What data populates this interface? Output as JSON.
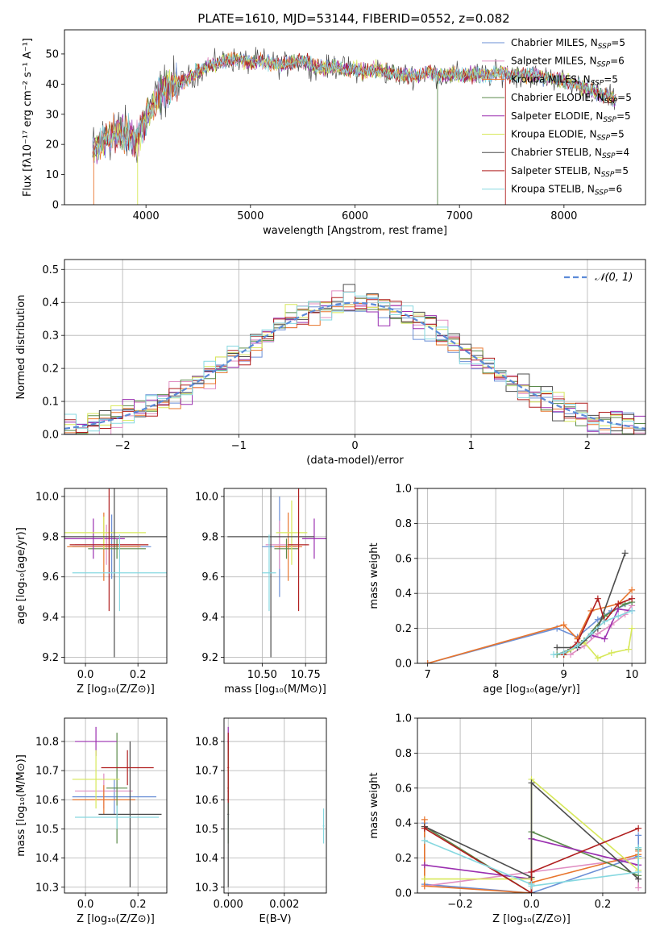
{
  "figure": {
    "title": "PLATE=1610, MJD=53144, FIBERID=0552, z=0.082"
  },
  "legend_entries": [
    {
      "pre": "Chabrier MILES, N",
      "sub": "SSP",
      "post": "=5",
      "color": "#6b8fd6"
    },
    {
      "pre": "Salpeter MILES, N",
      "sub": "SSP",
      "post": "=6",
      "color": "#e08ec2"
    },
    {
      "pre": "Kroupa MILES, N",
      "sub": "SSP",
      "post": "=5",
      "color": "#e8752d"
    },
    {
      "pre": "Chabrier ELODIE, N",
      "sub": "SSP",
      "post": "=5",
      "color": "#5a8a4a"
    },
    {
      "pre": "Salpeter ELODIE, N",
      "sub": "SSP",
      "post": "=5",
      "color": "#9b2fb0"
    },
    {
      "pre": "Kroupa ELODIE, N",
      "sub": "SSP",
      "post": "=5",
      "color": "#d7e85a"
    },
    {
      "pre": "Chabrier STELIB, N",
      "sub": "SSP",
      "post": "=4",
      "color": "#4d4d4d"
    },
    {
      "pre": "Salpeter STELIB, N",
      "sub": "SSP",
      "post": "=5",
      "color": "#b01e1e"
    },
    {
      "pre": "Kroupa STELIB, N",
      "sub": "SSP",
      "post": "=6",
      "color": "#86d8e0"
    }
  ],
  "chart_data": [
    {
      "id": "spectrum",
      "type": "line",
      "xlabel": "wavelength [Angstrom, rest frame]",
      "ylabel": "Flux [fλ10⁻¹⁷ erg cm⁻² s⁻¹ A⁻¹]",
      "xlim": [
        3220,
        8780
      ],
      "ylim": [
        0,
        58
      ],
      "xticks": [
        4000,
        5000,
        6000,
        7000,
        8000
      ],
      "yticks": [
        0,
        10,
        20,
        30,
        40,
        50
      ],
      "grid": false,
      "legend": "upper right",
      "envelope": {
        "x": [
          3500,
          3600,
          3700,
          3800,
          3900,
          4000,
          4100,
          4200,
          4300,
          4400,
          4500,
          4600,
          4700,
          4800,
          4900,
          5000,
          5100,
          5200,
          5300,
          5400,
          5500,
          5600,
          5700,
          5800,
          5900,
          6000,
          6100,
          6200,
          6300,
          6400,
          6500,
          6600,
          6700,
          6800,
          6900,
          7000,
          7100,
          7200,
          7300,
          7400,
          7500,
          7600,
          7700,
          7800,
          7900,
          8000,
          8100,
          8200,
          8300,
          8400,
          8500
        ],
        "y": [
          18,
          22,
          24,
          23,
          21,
          28,
          35,
          39,
          40,
          42,
          44,
          46,
          47,
          48,
          48,
          47,
          48,
          47,
          46,
          47,
          48,
          46,
          45,
          46,
          45,
          45,
          44,
          45,
          44,
          43,
          43,
          43,
          44,
          43,
          43,
          43,
          43,
          43,
          43,
          44,
          43,
          43,
          43,
          42,
          42,
          41,
          40,
          39,
          37,
          36,
          35
        ]
      }
    },
    {
      "id": "residuals",
      "type": "histogram",
      "xlabel": "(data-model)/error",
      "ylabel": "Normed distribution",
      "xlim": [
        -2.5,
        2.5
      ],
      "ylim": [
        0,
        0.53
      ],
      "xticks": [
        -2,
        -1,
        0,
        1,
        2
      ],
      "yticks": [
        0.0,
        0.1,
        0.2,
        0.3,
        0.4,
        0.5
      ],
      "grid": true,
      "legend": "upper right",
      "reference_label": "𝒩(0, 1)",
      "reference": "normal pdf mean 0 sigma 1"
    },
    {
      "id": "age_vs_Z",
      "type": "errorbar",
      "xlabel": "Z [log₁₀(Z/Z⊙)]",
      "ylabel": "age  [log₁₀(age/yr)]",
      "xlim": [
        -0.08,
        0.31
      ],
      "ylim": [
        9.17,
        10.04
      ],
      "xticks": [
        0.0,
        0.2
      ],
      "yticks": [
        9.2,
        9.4,
        9.6,
        9.8,
        10.0
      ],
      "grid": true,
      "points": [
        {
          "x": 0.1,
          "xerr": 0.15,
          "y": 9.75,
          "yerr": 0.16
        },
        {
          "x": 0.08,
          "xerr": 0.12,
          "y": 9.76,
          "yerr": 0.1
        },
        {
          "x": 0.07,
          "xerr": 0.14,
          "y": 9.75,
          "yerr": 0.17
        },
        {
          "x": 0.12,
          "xerr": 0.11,
          "y": 9.74,
          "yerr": 0.05
        },
        {
          "x": 0.03,
          "xerr": 0.12,
          "y": 9.79,
          "yerr": 0.1
        },
        {
          "x": 0.07,
          "xerr": 0.16,
          "y": 9.82,
          "yerr": 0.08
        },
        {
          "x": 0.11,
          "xerr": 0.2,
          "y": 9.8,
          "yerr": 0.6
        },
        {
          "x": 0.09,
          "xerr": 0.15,
          "y": 9.76,
          "yerr": 0.33
        },
        {
          "x": 0.13,
          "xerr": 0.18,
          "y": 9.62,
          "yerr": 0.19
        }
      ]
    },
    {
      "id": "age_vs_mass",
      "type": "errorbar",
      "xlabel": "mass [log₁₀(M/M⊙)]",
      "ylabel": "",
      "xlim": [
        10.28,
        10.87
      ],
      "ylim": [
        9.17,
        10.04
      ],
      "xticks": [
        10.5,
        10.75
      ],
      "yticks": [
        9.2,
        9.4,
        9.6,
        9.8,
        10.0
      ],
      "grid": true,
      "points": [
        {
          "x": 10.6,
          "xerr": 0.1,
          "y": 9.75,
          "yerr": 0.25
        },
        {
          "x": 10.6,
          "xerr": 0.08,
          "y": 9.76,
          "yerr": 0.12
        },
        {
          "x": 10.65,
          "xerr": 0.08,
          "y": 9.75,
          "yerr": 0.17
        },
        {
          "x": 10.64,
          "xerr": 0.07,
          "y": 9.74,
          "yerr": 0.05
        },
        {
          "x": 10.8,
          "xerr": 0.07,
          "y": 9.79,
          "yerr": 0.1
        },
        {
          "x": 10.67,
          "xerr": 0.09,
          "y": 9.82,
          "yerr": 0.16
        },
        {
          "x": 10.55,
          "xerr": 0.25,
          "y": 9.8,
          "yerr": 0.6
        },
        {
          "x": 10.71,
          "xerr": 0.06,
          "y": 9.76,
          "yerr": 0.33
        },
        {
          "x": 10.54,
          "xerr": 0.04,
          "y": 9.62,
          "yerr": 0.19
        }
      ]
    },
    {
      "id": "massweight_vs_age",
      "type": "line",
      "xlabel": "age  [log₁₀(age/yr)]",
      "ylabel": "mass weight",
      "xlim": [
        6.85,
        10.2
      ],
      "ylim": [
        0,
        1
      ],
      "xticks": [
        7,
        8,
        9,
        10
      ],
      "yticks": [
        0.0,
        0.2,
        0.4,
        0.6,
        0.8,
        1.0
      ],
      "grid": true,
      "series": [
        {
          "x": [
            7.0,
            8.9,
            9.2,
            9.5,
            9.7,
            10.0
          ],
          "y": [
            0.0,
            0.2,
            0.15,
            0.25,
            0.3,
            0.35
          ]
        },
        {
          "x": [
            9.1,
            9.3,
            9.5,
            9.7,
            9.9,
            10.0
          ],
          "y": [
            0.05,
            0.1,
            0.17,
            0.22,
            0.28,
            0.33
          ]
        },
        {
          "x": [
            7.0,
            9.0,
            9.2,
            9.4,
            9.8,
            10.0
          ],
          "y": [
            0.0,
            0.22,
            0.14,
            0.3,
            0.34,
            0.42
          ]
        },
        {
          "x": [
            8.9,
            9.1,
            9.3,
            9.6,
            9.9,
            10.0
          ],
          "y": [
            0.05,
            0.08,
            0.13,
            0.27,
            0.34,
            0.35
          ]
        },
        {
          "x": [
            9.0,
            9.2,
            9.4,
            9.6,
            9.8,
            10.0
          ],
          "y": [
            0.06,
            0.1,
            0.16,
            0.14,
            0.31,
            0.3
          ]
        },
        {
          "x": [
            9.0,
            9.3,
            9.5,
            9.7,
            9.95,
            10.0
          ],
          "y": [
            0.05,
            0.12,
            0.03,
            0.06,
            0.08,
            0.2
          ]
        },
        {
          "x": [
            8.9,
            9.2,
            9.5,
            9.9
          ],
          "y": [
            0.09,
            0.09,
            0.2,
            0.63
          ]
        },
        {
          "x": [
            9.0,
            9.2,
            9.5,
            9.6,
            9.8,
            10.0
          ],
          "y": [
            0.05,
            0.12,
            0.37,
            0.24,
            0.34,
            0.37
          ]
        },
        {
          "x": [
            8.85,
            9.0,
            9.2,
            9.4,
            9.6,
            9.8,
            10.0
          ],
          "y": [
            0.05,
            0.06,
            0.1,
            0.17,
            0.24,
            0.27,
            0.3
          ]
        }
      ]
    },
    {
      "id": "mass_vs_Z",
      "type": "errorbar",
      "xlabel": "Z [log₁₀(Z/Z⊙)]",
      "ylabel": "mass [log₁₀(M/M⊙)]",
      "xlim": [
        -0.08,
        0.31
      ],
      "ylim": [
        10.28,
        10.88
      ],
      "xticks": [
        0.0,
        0.2
      ],
      "yticks": [
        10.3,
        10.4,
        10.5,
        10.6,
        10.7,
        10.8
      ],
      "grid": true,
      "points": [
        {
          "x": 0.11,
          "xerr": 0.16,
          "y": 10.61,
          "yerr": 0.06
        },
        {
          "x": 0.07,
          "xerr": 0.11,
          "y": 10.63,
          "yerr": 0.06
        },
        {
          "x": 0.07,
          "xerr": 0.12,
          "y": 10.6,
          "yerr": 0.05
        },
        {
          "x": 0.12,
          "xerr": 0.04,
          "y": 10.64,
          "yerr": 0.19
        },
        {
          "x": 0.04,
          "xerr": 0.08,
          "y": 10.8,
          "yerr": 0.05
        },
        {
          "x": 0.04,
          "xerr": 0.09,
          "y": 10.67,
          "yerr": 0.1
        },
        {
          "x": 0.17,
          "xerr": 0.12,
          "y": 10.55,
          "yerr": 0.25
        },
        {
          "x": 0.16,
          "xerr": 0.1,
          "y": 10.71,
          "yerr": 0.06
        },
        {
          "x": 0.12,
          "xerr": 0.16,
          "y": 10.54,
          "yerr": 0.04
        }
      ]
    },
    {
      "id": "mass_vs_ebv",
      "type": "errorbar",
      "xlabel": "E(B-V)",
      "ylabel": "",
      "xlim": [
        -0.00015,
        0.0035
      ],
      "ylim": [
        10.28,
        10.88
      ],
      "xticks": [
        0.0,
        0.002
      ],
      "xticklabels": [
        "0.000",
        "0.002"
      ],
      "yticks": [
        10.3,
        10.4,
        10.5,
        10.6,
        10.7,
        10.8
      ],
      "grid": true,
      "points": [
        {
          "x": 0.0,
          "y": 10.6,
          "yerr": 0.1
        },
        {
          "x": 0.0,
          "y": 10.63,
          "yerr": 0.06
        },
        {
          "x": 0.0,
          "y": 10.6,
          "yerr": 0.05
        },
        {
          "x": 0.0,
          "y": 10.64,
          "yerr": 0.19
        },
        {
          "x": 0.0,
          "y": 10.8,
          "yerr": 0.05
        },
        {
          "x": 0.0,
          "y": 10.7,
          "yerr": 0.07
        },
        {
          "x": 0.0,
          "y": 10.55,
          "yerr": 0.25
        },
        {
          "x": 0.0,
          "y": 10.71,
          "yerr": 0.12
        },
        {
          "x": 0.0034,
          "y": 10.51,
          "yerr": 0.06
        }
      ]
    },
    {
      "id": "massweight_vs_Z",
      "type": "line",
      "xlabel": "Z [log₁₀(Z/Z⊙)]",
      "ylabel": "mass weight",
      "xlim": [
        -0.32,
        0.32
      ],
      "ylim": [
        0,
        1
      ],
      "xticks": [
        -0.2,
        0.0,
        0.2
      ],
      "yticks": [
        0.0,
        0.2,
        0.4,
        0.6,
        0.8,
        1.0
      ],
      "grid": true,
      "series": [
        {
          "x": [
            -0.3,
            -0.3,
            0.0,
            0.3,
            0.3
          ],
          "y": [
            0.4,
            0.05,
            0.0,
            0.21,
            0.33
          ]
        },
        {
          "x": [
            -0.3,
            0.0,
            0.3,
            0.3
          ],
          "y": [
            0.04,
            0.12,
            0.2,
            0.03
          ]
        },
        {
          "x": [
            -0.3,
            -0.3,
            0.0,
            0.0,
            0.3,
            0.3
          ],
          "y": [
            0.42,
            0.04,
            0.0,
            0.06,
            0.22,
            0.24
          ]
        },
        {
          "x": [
            -0.3,
            0.0,
            0.0,
            0.3,
            0.3
          ],
          "y": [
            0.38,
            0.0,
            0.35,
            0.1,
            0.25
          ]
        },
        {
          "x": [
            -0.3,
            0.0,
            0.0,
            0.3
          ],
          "y": [
            0.16,
            0.08,
            0.31,
            0.16
          ]
        },
        {
          "x": [
            -0.3,
            0.0,
            0.0,
            0.3,
            0.3
          ],
          "y": [
            0.08,
            0.08,
            0.65,
            0.13,
            0.2
          ]
        },
        {
          "x": [
            -0.3,
            0.0,
            0.0,
            0.3
          ],
          "y": [
            0.38,
            0.09,
            0.63,
            0.08
          ]
        },
        {
          "x": [
            -0.3,
            0.0,
            0.0,
            0.3
          ],
          "y": [
            0.37,
            0.0,
            0.12,
            0.37
          ]
        },
        {
          "x": [
            -0.3,
            0.0,
            0.0,
            0.3,
            0.3
          ],
          "y": [
            0.3,
            0.05,
            0.04,
            0.12,
            0.26
          ]
        }
      ]
    }
  ]
}
